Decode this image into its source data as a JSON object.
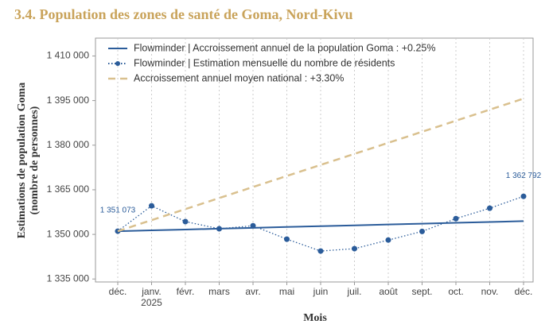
{
  "chart_data": {
    "type": "line",
    "title": "3.4. Population des zones de santé de Goma, Nord-Kivu",
    "x_label": "Mois",
    "y_label": "Estimations de population Goma\n(nombre de personnes)",
    "categories": [
      "déc.",
      "janv.\n2025",
      "févr.",
      "mars",
      "avr.",
      "mai",
      "juin",
      "juil.",
      "août",
      "sept.",
      "oct.",
      "nov.",
      "déc."
    ],
    "ylim": [
      1334000,
      1416000
    ],
    "yticks": [
      {
        "value": 1335000,
        "label": "1 335 000"
      },
      {
        "value": 1350000,
        "label": "1 350 000"
      },
      {
        "value": 1365000,
        "label": "1 365 000"
      },
      {
        "value": 1380000,
        "label": "1 380 000"
      },
      {
        "value": 1395000,
        "label": "1 395 000"
      },
      {
        "value": 1410000,
        "label": "1 410 000"
      }
    ],
    "grid": true,
    "legend": "top-left",
    "series": [
      {
        "name": "Flowminder | Accroissement annuel de la population Goma : +0.25%",
        "color": "#2b5c9a",
        "style": "solid",
        "markers": false,
        "values": [
          1351073,
          1351355,
          1351636,
          1351918,
          1352199,
          1352481,
          1352762,
          1353044,
          1353325,
          1353607,
          1353888,
          1354170,
          1354451
        ]
      },
      {
        "name": "Flowminder | Estimation mensuelle du nombre de résidents",
        "color": "#2b5c9a",
        "style": "dotted",
        "markers": true,
        "values": [
          1351073,
          1359600,
          1354300,
          1351900,
          1352900,
          1348400,
          1344400,
          1345200,
          1348100,
          1351000,
          1355300,
          1358800,
          1362792
        ],
        "value_labels": [
          "1 351 073",
          null,
          null,
          null,
          null,
          null,
          null,
          null,
          null,
          null,
          null,
          null,
          "1 362 792"
        ]
      },
      {
        "name": "Accroissement annuel moyen national : +3.30%",
        "color": "#d9c08e",
        "style": "dashed",
        "markers": false,
        "values": [
          1351073,
          1354788,
          1358504,
          1362219,
          1365935,
          1369650,
          1373366,
          1377081,
          1380796,
          1384512,
          1388227,
          1391943,
          1395658
        ]
      }
    ]
  }
}
